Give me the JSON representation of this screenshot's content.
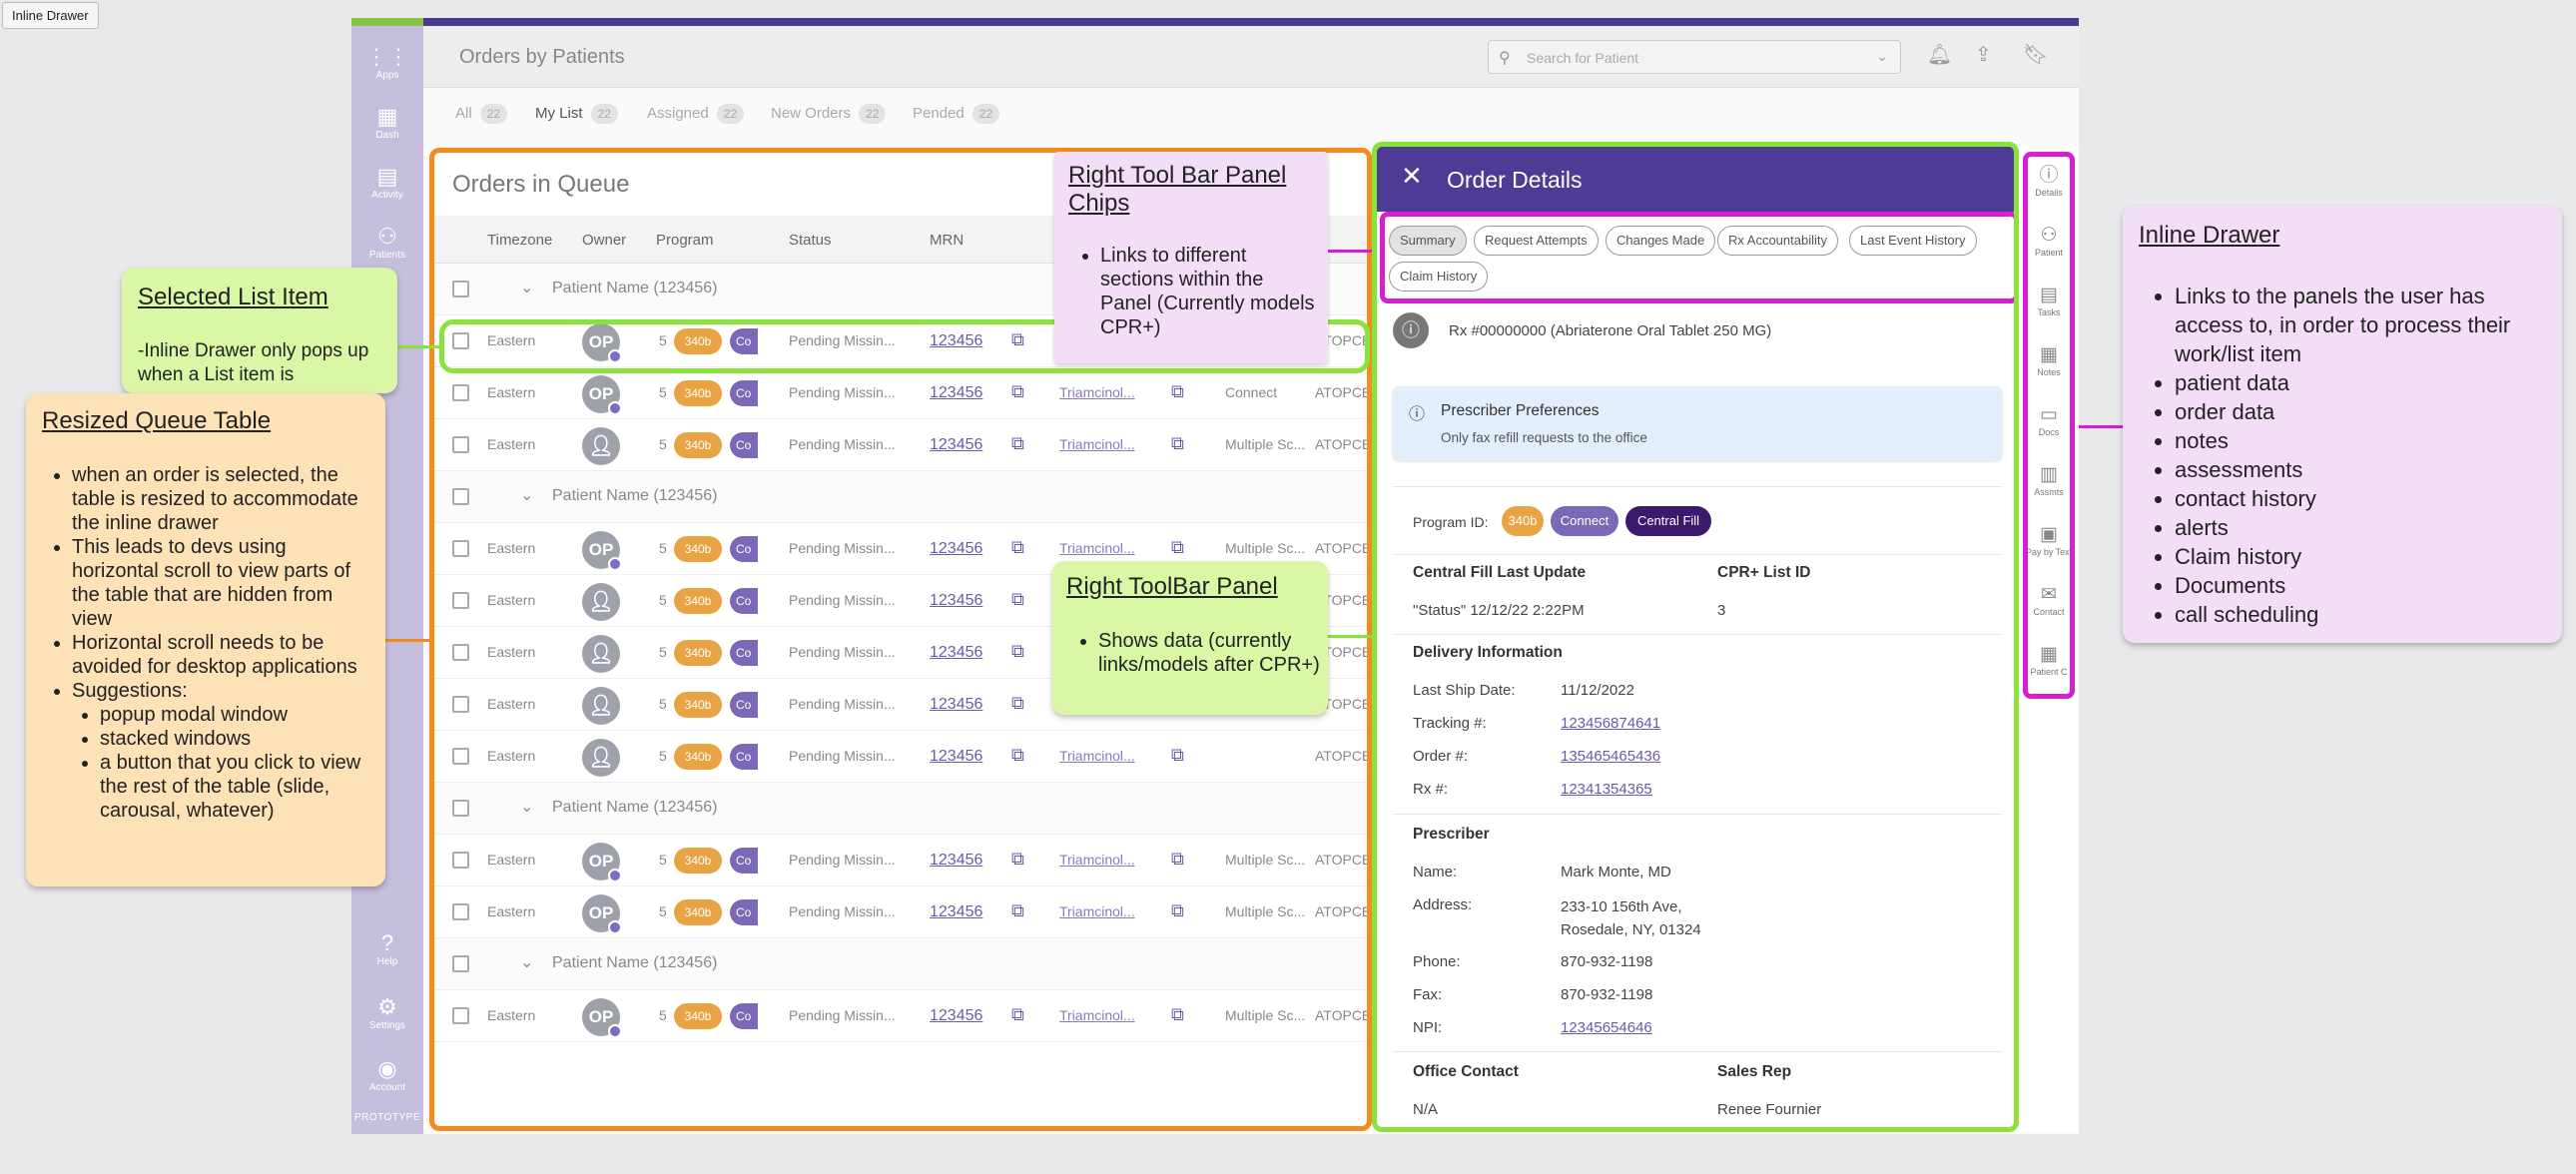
{
  "frame_label": "Inline Drawer",
  "app": {
    "title": "Orders by Patients",
    "search_placeholder": "Search for Patient",
    "nav": [
      {
        "label": "Apps",
        "icon": "apps-grid-icon"
      },
      {
        "label": "Dash",
        "icon": "dashboard-icon"
      },
      {
        "label": "Activity",
        "icon": "activity-icon"
      },
      {
        "label": "Patients",
        "icon": "patients-icon"
      },
      {
        "label": "Help",
        "icon": "help-icon"
      },
      {
        "label": "Settings",
        "icon": "settings-icon"
      },
      {
        "label": "Account",
        "icon": "account-icon"
      }
    ],
    "prototype_label": "PROTOTYPE",
    "tabs": [
      {
        "label": "All",
        "count": "22"
      },
      {
        "label": "My List",
        "count": "22"
      },
      {
        "label": "Assigned",
        "count": "22"
      },
      {
        "label": "New Orders",
        "count": "22"
      },
      {
        "label": "Pended",
        "count": "22"
      }
    ]
  },
  "queue": {
    "title": "Orders in Queue",
    "columns": [
      "Timezone",
      "Owner",
      "Program",
      "Status",
      "MRN"
    ],
    "group_label": "Patient Name (123456)",
    "row": {
      "timezone": "Eastern",
      "initials": "OP",
      "count": "5",
      "chip": "340b",
      "chip2": "Co",
      "status": "Pending Missin...",
      "mrn": "123456",
      "drug": "Triamcinol...",
      "program_connect": "Connect",
      "program_multi": "Multiple Sc...",
      "therapy": "ATOPCE"
    }
  },
  "drawer": {
    "title": "Order Details",
    "chips": [
      "Summary",
      "Request Attempts",
      "Changes Made",
      "Rx Accountability",
      "Last Event History",
      "Claim History"
    ],
    "rx": "Rx #00000000 (Abriaterone Oral Tablet 250 MG)",
    "pref_title": "Prescriber Preferences",
    "pref_text": "Only fax refill requests to the office",
    "program_label": "Program ID:",
    "program_chips": [
      {
        "label": "340b",
        "color": "#e8a443"
      },
      {
        "label": "Connect",
        "color": "#7b68b6"
      },
      {
        "label": "Central Fill",
        "color": "#3b1a6e"
      }
    ],
    "cf_label": "Central Fill Last Update",
    "cf_value": "\"Status\" 12/12/22 2:22PM",
    "cpr_label": "CPR+ List ID",
    "cpr_value": "3",
    "delivery_title": "Delivery Information",
    "ship_label": "Last Ship Date:",
    "ship_value": "11/12/2022",
    "tracking_label": "Tracking #:",
    "tracking_value": "123456874641",
    "order_label": "Order #:",
    "order_value": "135465465436",
    "rxnum_label": "Rx #:",
    "rxnum_value": "12341354365",
    "prescriber_title": "Prescriber",
    "name_label": "Name:",
    "name_value": "Mark Monte, MD",
    "address_label": "Address:",
    "address_line1": "233-10 156th Ave,",
    "address_line2": "Rosedale, NY, 01324",
    "phone_label": "Phone:",
    "phone_value": "870-932-1198",
    "fax_label": "Fax:",
    "fax_value": "870-932-1198",
    "npi_label": "NPI:",
    "npi_value": "12345654646",
    "office_label": "Office Contact",
    "office_value": "N/A",
    "sales_label": "Sales Rep",
    "sales_value": "Renee Fournier"
  },
  "right_toolbar": [
    {
      "label": "Details",
      "icon": "info-icon"
    },
    {
      "label": "Patient",
      "icon": "patient-add-icon"
    },
    {
      "label": "Tasks",
      "icon": "tasks-icon"
    },
    {
      "label": "Notes",
      "icon": "notes-icon"
    },
    {
      "label": "Docs",
      "icon": "folder-icon"
    },
    {
      "label": "Assmts",
      "icon": "clipboard-icon"
    },
    {
      "label": "Pay by Text",
      "icon": "chat-icon"
    },
    {
      "label": "Contact",
      "icon": "mail-phone-icon"
    },
    {
      "label": "Patient C",
      "icon": "calendar-icon"
    }
  ],
  "notes": {
    "selected": {
      "title": "Selected List Item",
      "text": "-Inline Drawer only pops up when a List item is"
    },
    "resized": {
      "title": "Resized Queue Table",
      "bullets": [
        "when an order is selected, the table is resized to accommodate the inline drawer",
        "This leads to devs using horizontal scroll to view parts of the table that are hidden from view",
        "Horizontal scroll needs to be avoided for desktop applications",
        "Suggestions:"
      ],
      "sub_bullets": [
        "popup modal window",
        "stacked windows",
        "a button that you click to view the rest of the table (slide, carousal, whatever)"
      ]
    },
    "chips": {
      "title_line1": "Right Tool Bar Panel",
      "title_line2": "Chips",
      "bullet": "Links to different sections within the Panel (Currently models CPR+)"
    },
    "toolbar": {
      "title": "Right ToolBar Panel",
      "bullet": "Shows data (currently links/models after CPR+)"
    },
    "drawer": {
      "title": "Inline Drawer",
      "bullets": [
        "Links to the panels the user has access to, in order to process their work/list item",
        "patient data",
        "order data",
        "notes",
        "assessments",
        "contact history",
        "alerts",
        "Claim history",
        "Documents",
        "call scheduling"
      ]
    }
  }
}
